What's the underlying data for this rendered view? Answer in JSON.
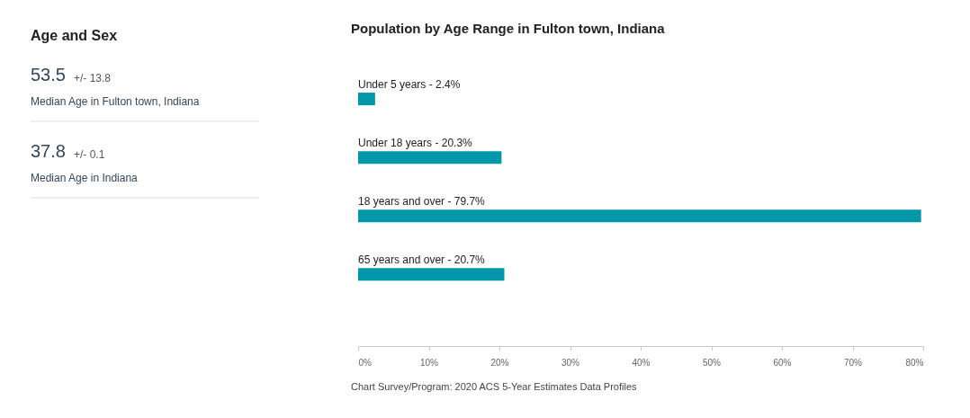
{
  "chart_data": [
    {
      "type": "other",
      "title": "Age and Sex",
      "annotations": [
        "53.5",
        "+/- 13.8",
        "Median Age in Fulton town, Indiana",
        "37.8",
        "+/- 0.1",
        "Median Age in Indiana"
      ]
    },
    {
      "type": "bar",
      "orientation": "horizontal",
      "title": "Population by Age Range in Fulton town, Indiana",
      "categories": [
        "Under 5 years - 2.4%",
        "Under 18 years - 20.3%",
        "18 years and over - 79.7%",
        "65 years and over - 20.7%"
      ],
      "values": [
        2.4,
        20.3,
        79.7,
        20.7
      ],
      "color": "#0097a8",
      "xlim": [
        0,
        80
      ],
      "xticks": [
        {
          "value": 0,
          "label": "0%"
        },
        {
          "value": 10,
          "label": "10%"
        },
        {
          "value": 20,
          "label": "20%"
        },
        {
          "value": 30,
          "label": "30%"
        },
        {
          "value": 40,
          "label": "40%"
        },
        {
          "value": 50,
          "label": "50%"
        },
        {
          "value": 60,
          "label": "60%"
        },
        {
          "value": 70,
          "label": "70%"
        },
        {
          "value": 80,
          "label": "80%"
        }
      ],
      "annotations": [
        "Chart Survey/Program: 2020 ACS 5-Year Estimates Data Profiles"
      ]
    }
  ]
}
